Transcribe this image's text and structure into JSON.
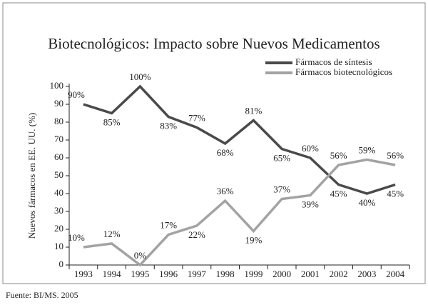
{
  "chart_data": {
    "type": "line",
    "title": "Biotecnológicos: Impacto sobre Nuevos Medicamentos",
    "y_label": "Nuevos fármacos en EE. UU. (%)",
    "source": "Fuente: BI/MS. 2005",
    "categories": [
      "1993",
      "1994",
      "1995",
      "1996",
      "1997",
      "1998",
      "1999",
      "2000",
      "2001",
      "2002",
      "2003",
      "2004"
    ],
    "series": [
      {
        "name": "Fármacos de síntesis",
        "color": "#4a4a4a",
        "values": [
          90,
          85,
          100,
          83,
          77,
          68,
          81,
          65,
          60,
          45,
          40,
          45
        ],
        "value_labels": [
          "90%",
          "85%",
          "100%",
          "83%",
          "77%",
          "68%",
          "81%",
          "65%",
          "60%",
          "45%",
          "40%",
          "45%"
        ]
      },
      {
        "name": "Fármacos biotecnológicos",
        "color": "#a3a3a3",
        "values": [
          10,
          12,
          0,
          17,
          22,
          36,
          19,
          37,
          39,
          56,
          59,
          56
        ],
        "value_labels": [
          "10%",
          "12%",
          "0%",
          "17%",
          "22%",
          "36%",
          "19%",
          "37%",
          "39%",
          "56%",
          "59%",
          "56%"
        ]
      }
    ],
    "ylim": [
      0,
      100
    ],
    "yticks": [
      0,
      10,
      20,
      30,
      40,
      50,
      60,
      70,
      80,
      90,
      100
    ],
    "legend": "top-right",
    "grid": false
  }
}
